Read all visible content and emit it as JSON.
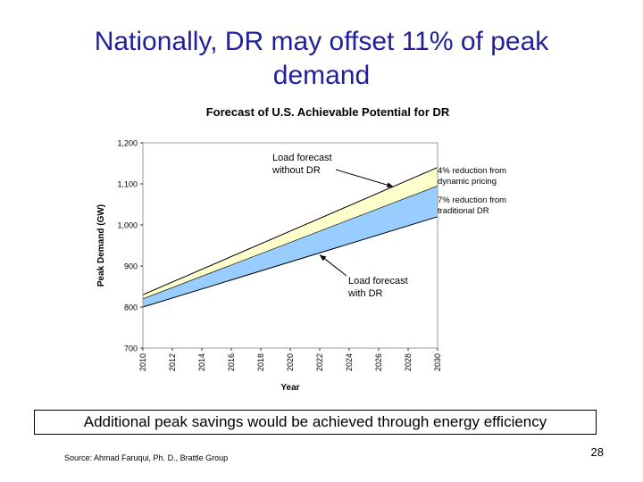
{
  "slide": {
    "title_line1": "Nationally, DR may offset 11% of peak",
    "title_line2": "demand",
    "callout": "Additional peak savings would be achieved through energy efficiency",
    "source": "Source: Ahmad Faruqui, Ph. D., Brattle Group",
    "page_number": "28"
  },
  "chart_data": {
    "type": "area",
    "title": "Forecast of U.S. Achievable Potential for DR",
    "xlabel": "Year",
    "ylabel": "Peak Demand (GW)",
    "xlim": [
      2010,
      2030
    ],
    "ylim": [
      700,
      1200
    ],
    "x_ticks": [
      "2010",
      "2012",
      "2014",
      "2016",
      "2018",
      "2020",
      "2022",
      "2024",
      "2026",
      "2028",
      "2030"
    ],
    "y_ticks": [
      "700",
      "800",
      "900",
      "1,000",
      "1,100",
      "1,200"
    ],
    "x": [
      2010,
      2030
    ],
    "series": [
      {
        "name": "Load forecast without DR",
        "values": [
          830,
          1140
        ]
      },
      {
        "name": "4% reduction from dynamic pricing",
        "values": [
          820,
          1095
        ]
      },
      {
        "name": "Load forecast with DR",
        "values": [
          800,
          1020
        ]
      }
    ],
    "bands": [
      {
        "label": "4% reduction from dynamic pricing",
        "color": "#ffffcc"
      },
      {
        "label": "7% reduction from traditional DR",
        "color": "#99ccff"
      }
    ],
    "annotations": [
      {
        "text_line1": "Load forecast",
        "text_line2": "without DR",
        "points_to_year": 2027,
        "points_to_value": 1093
      },
      {
        "text_line1": "Load forecast",
        "text_line2": "with DR",
        "points_to_year": 2022,
        "points_to_value": 927
      },
      {
        "text_line1": "4% reduction from",
        "text_line2": "dynamic pricing"
      },
      {
        "text_line1": "7% reduction from",
        "text_line2": "traditional DR"
      }
    ],
    "colors": {
      "outline": "#000000",
      "plot_border": "#999999"
    },
    "grid": false,
    "legend": "none"
  }
}
